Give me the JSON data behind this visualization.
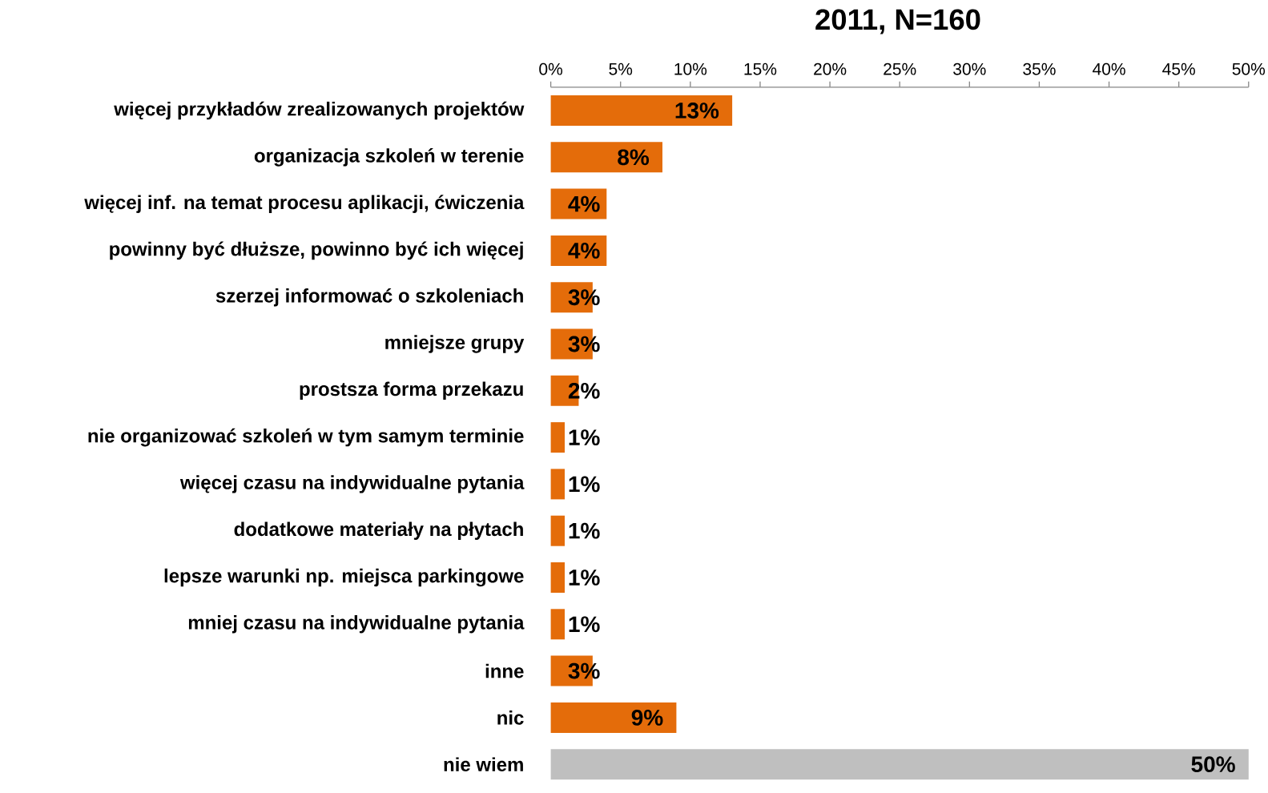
{
  "chart_data": {
    "type": "bar",
    "orientation": "horizontal",
    "title": "2011, N=160",
    "categories": [
      "więcej przykładów zrealizowanych projektów",
      "organizacja szkoleń w terenie",
      "więcej inf. na temat procesu aplikacji, ćwiczenia",
      "powinny być dłuższe, powinno być ich więcej",
      "szerzej informować o szkoleniach",
      "mniejsze grupy",
      "prostsza forma przekazu",
      "nie organizować szkoleń w tym samym terminie",
      "więcej czasu na indywidualne pytania",
      "dodatkowe materiały na płytach",
      "lepsze warunki np. miejsca parkingowe",
      "mniej czasu na indywidualne pytania",
      "inne",
      "nic",
      "nie wiem"
    ],
    "values": [
      13,
      8,
      4,
      4,
      3,
      3,
      2,
      1,
      1,
      1,
      1,
      1,
      3,
      9,
      50
    ],
    "colors": [
      "#e46c0a",
      "#e46c0a",
      "#e46c0a",
      "#e46c0a",
      "#e46c0a",
      "#e46c0a",
      "#e46c0a",
      "#e46c0a",
      "#e46c0a",
      "#e46c0a",
      "#e46c0a",
      "#e46c0a",
      "#e46c0a",
      "#e46c0a",
      "#bfbfbf"
    ],
    "value_labels": [
      "13%",
      "8%",
      "4%",
      "4%",
      "3%",
      "3%",
      "2%",
      "1%",
      "1%",
      "1%",
      "1%",
      "1%",
      "3%",
      "9%",
      "50%"
    ],
    "xlim": [
      0,
      50
    ],
    "xticks": [
      {
        "value": 0,
        "label": "0%"
      },
      {
        "value": 5,
        "label": "5%"
      },
      {
        "value": 10,
        "label": "10%"
      },
      {
        "value": 15,
        "label": "15%"
      },
      {
        "value": 20,
        "label": "20%"
      },
      {
        "value": 25,
        "label": "25%"
      },
      {
        "value": 30,
        "label": "30%"
      },
      {
        "value": 35,
        "label": "35%"
      },
      {
        "value": 40,
        "label": "40%"
      },
      {
        "value": 45,
        "label": "45%"
      },
      {
        "value": 50,
        "label": "50%"
      }
    ]
  }
}
